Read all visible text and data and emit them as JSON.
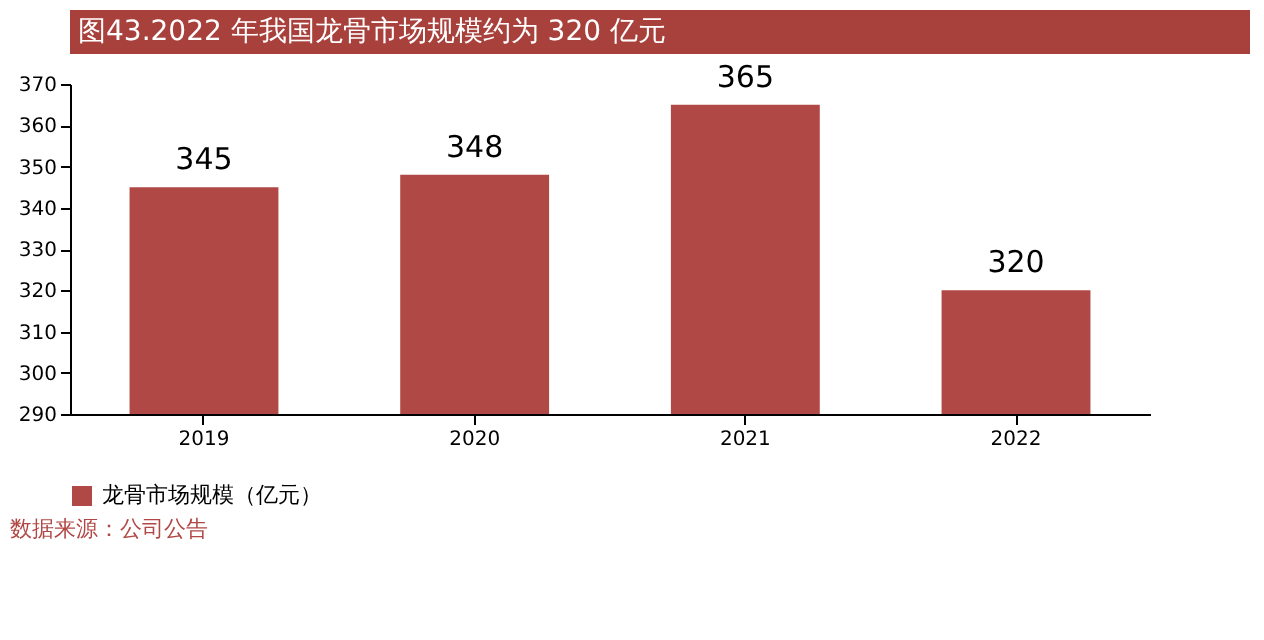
{
  "chart_data": {
    "type": "bar",
    "title": "图43.2022 年我国龙骨市场规模约为 320 亿元",
    "categories": [
      "2019",
      "2020",
      "2021",
      "2022"
    ],
    "series": [
      {
        "name": "龙骨市场规模（亿元）",
        "color": "#b04845",
        "values": [
          345,
          348,
          365,
          320
        ]
      }
    ],
    "ylim": [
      290,
      370
    ],
    "yticks": [
      290,
      300,
      310,
      320,
      330,
      340,
      350,
      360,
      370
    ],
    "data_labels": true,
    "grid": false,
    "legend": "bottom",
    "annotations": [
      "数据来源：公司公告"
    ]
  }
}
